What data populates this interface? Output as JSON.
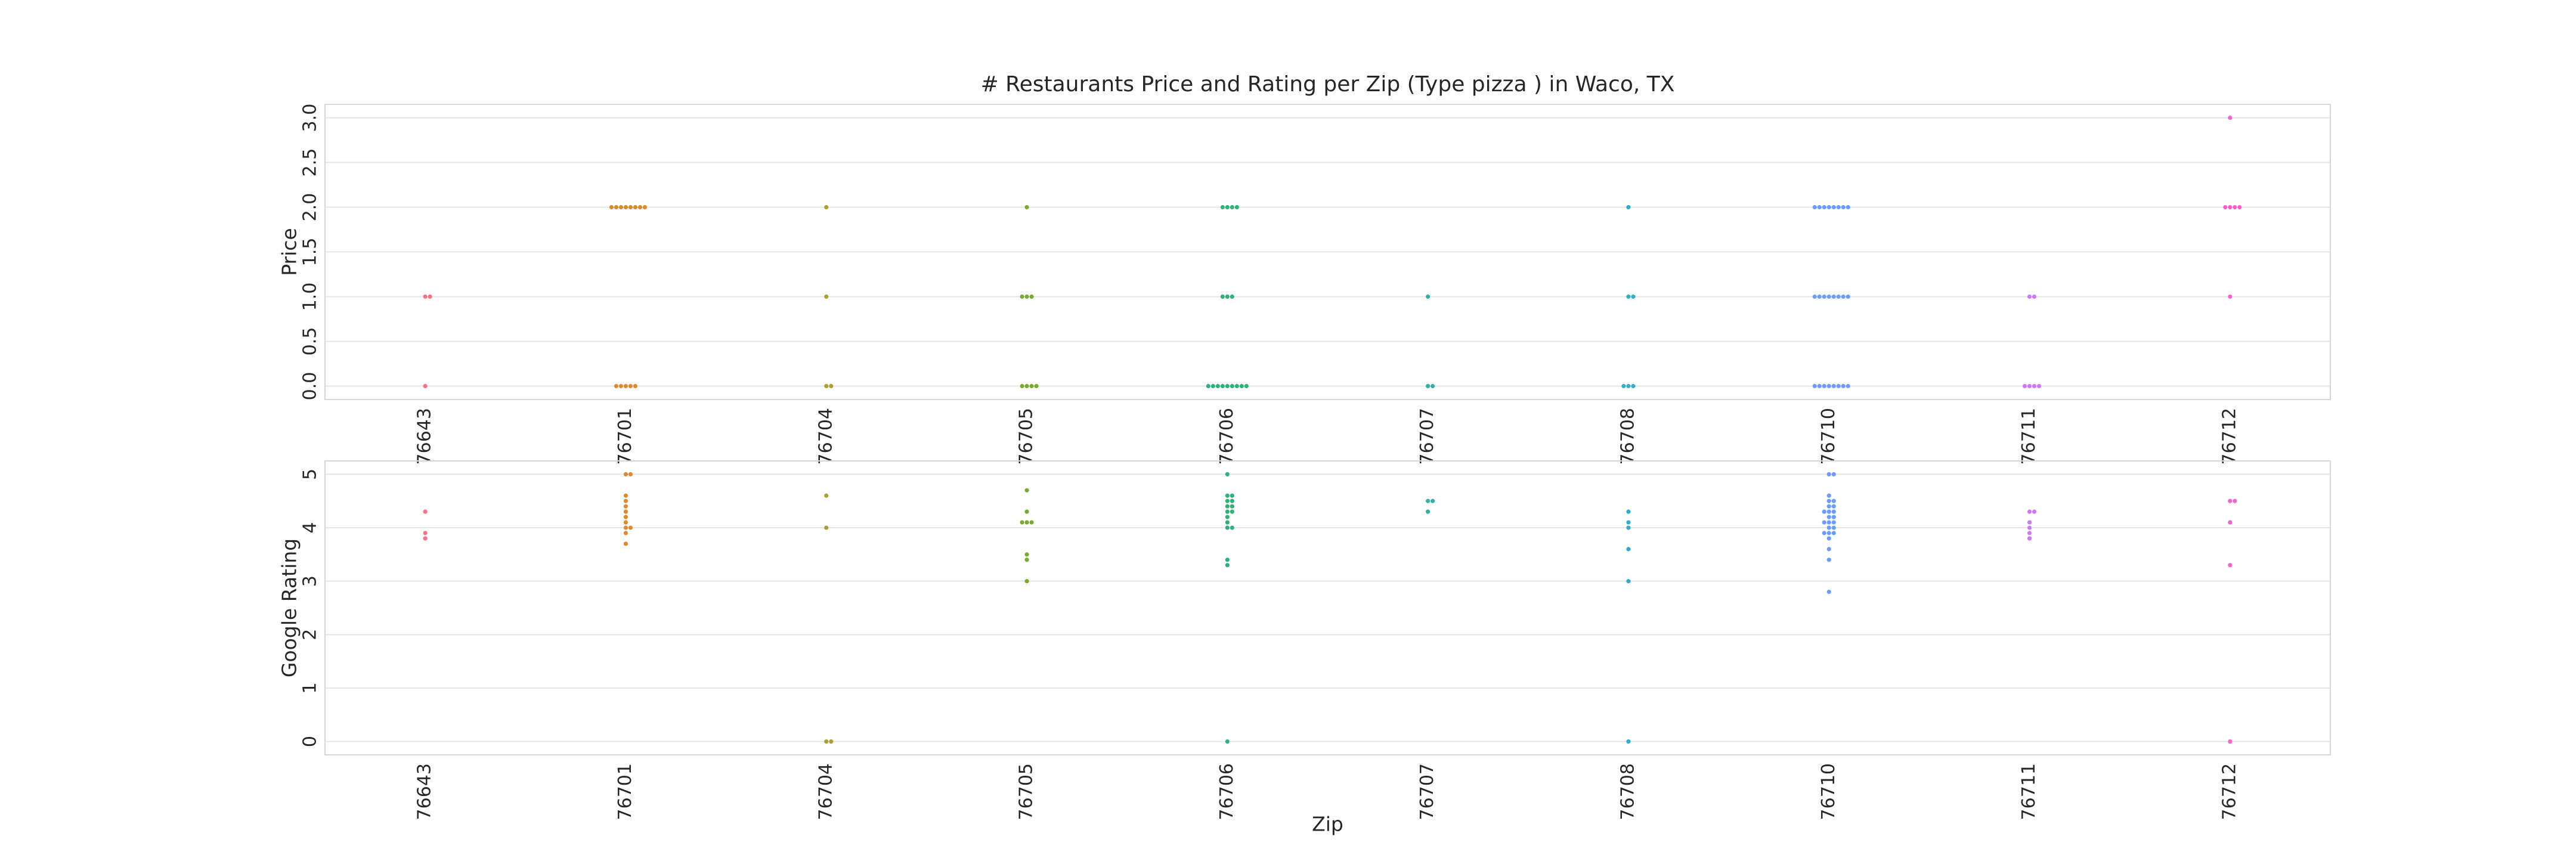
{
  "chart_data": [
    {
      "type": "swarm",
      "title": "# Restaurants Price and Rating per Zip (Type pizza ) in Waco, TX",
      "ylabel": "Price",
      "categories": [
        "76643",
        "76701",
        "76704",
        "76705",
        "76706",
        "76707",
        "76708",
        "76710",
        "76711",
        "76712"
      ],
      "colors": [
        "#f77189",
        "#dc8932",
        "#ae9d31",
        "#77ab31",
        "#33b07a",
        "#36ada4",
        "#38a9c5",
        "#6e9bf4",
        "#cc7af4",
        "#f565cc"
      ],
      "values": [
        [
          1,
          1,
          0
        ],
        [
          2,
          2,
          2,
          2,
          2,
          2,
          2,
          2,
          0,
          0,
          0,
          0,
          0
        ],
        [
          2,
          1,
          0,
          0
        ],
        [
          2,
          1,
          1,
          1,
          0,
          0,
          0,
          0
        ],
        [
          2,
          2,
          2,
          2,
          1,
          1,
          1,
          0,
          0,
          0,
          0,
          0,
          0,
          0,
          0,
          0
        ],
        [
          1,
          0,
          0
        ],
        [
          2,
          1,
          1,
          0,
          0,
          0
        ],
        [
          2,
          2,
          2,
          2,
          2,
          2,
          2,
          2,
          1,
          1,
          1,
          1,
          1,
          1,
          1,
          1,
          0,
          0,
          0,
          0,
          0,
          0,
          0,
          0
        ],
        [
          1,
          1,
          0,
          0,
          0,
          0
        ],
        [
          3,
          2,
          2,
          2,
          2,
          1
        ]
      ],
      "ylim": [
        -0.15,
        3.15
      ],
      "yticks": [
        {
          "value": 0,
          "label": "0.0"
        },
        {
          "value": 0.5,
          "label": "0.5"
        },
        {
          "value": 1,
          "label": "1.0"
        },
        {
          "value": 1.5,
          "label": "1.5"
        },
        {
          "value": 2,
          "label": "2.0"
        },
        {
          "value": 2.5,
          "label": "2.5"
        },
        {
          "value": 3,
          "label": "3.0"
        }
      ],
      "grid": true
    },
    {
      "type": "swarm",
      "ylabel": "Google Rating",
      "xlabel": "Zip",
      "categories": [
        "76643",
        "76701",
        "76704",
        "76705",
        "76706",
        "76707",
        "76708",
        "76710",
        "76711",
        "76712"
      ],
      "colors": [
        "#f77189",
        "#dc8932",
        "#ae9d31",
        "#77ab31",
        "#33b07a",
        "#36ada4",
        "#38a9c5",
        "#6e9bf4",
        "#cc7af4",
        "#f565cc"
      ],
      "values": [
        [
          4.3,
          3.9,
          3.8
        ],
        [
          5,
          5,
          4.6,
          4.4,
          4.3,
          4,
          4,
          3.9,
          3.7,
          4.1,
          4.2,
          4.5
        ],
        [
          4.6,
          4,
          0,
          0
        ],
        [
          4.7,
          4.3,
          4.1,
          4.1,
          3.5,
          3.4,
          3,
          4.1
        ],
        [
          5,
          4.6,
          4.6,
          4.5,
          4.4,
          4.3,
          4.3,
          4.2,
          4,
          4,
          3.4,
          3.3,
          0,
          4.1,
          4.5,
          4.4
        ],
        [
          4.5,
          4.5,
          4.3
        ],
        [
          4.3,
          4.1,
          4,
          3.6,
          3,
          0
        ],
        [
          5,
          5,
          4.6,
          4.5,
          4.4,
          4.3,
          4.3,
          4.2,
          4.1,
          4.1,
          4,
          3.9,
          3.9,
          3.8,
          3.6,
          3.4,
          2.8,
          4,
          4.2,
          4.4,
          4.1,
          3.9,
          4.3,
          4.5
        ],
        [
          4.3,
          4.3,
          4.1,
          4,
          3.9,
          3.8
        ],
        [
          4.5,
          4.5,
          4.1,
          3.3,
          0
        ]
      ],
      "ylim": [
        -0.25,
        5.25
      ],
      "yticks": [
        0,
        1,
        2,
        3,
        4,
        5
      ],
      "grid": true
    }
  ]
}
